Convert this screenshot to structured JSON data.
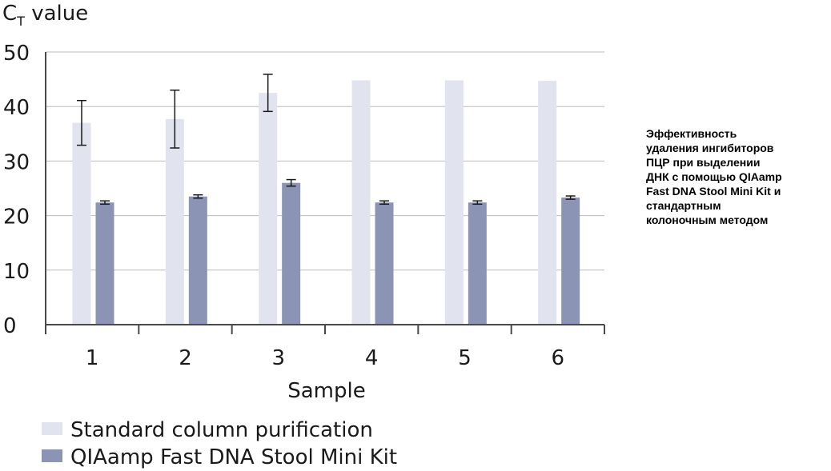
{
  "caption": "Эффективность\nудаления ингибиторов\nПЦР при выделении\nДНК с помощью QIAamp\nFast DNA Stool Mini Kit и\nстандартным\nколоночным методом",
  "chart_data": {
    "type": "bar",
    "title": "",
    "ylabel_main": "C",
    "ylabel_sub": "T",
    "ylabel_rest": " value",
    "xlabel": "Sample",
    "categories": [
      "1",
      "2",
      "3",
      "4",
      "5",
      "6"
    ],
    "ylim": [
      0,
      50
    ],
    "yticks": [
      0,
      10,
      20,
      30,
      40,
      50
    ],
    "grid": true,
    "legend_position": "bottom-left",
    "series": [
      {
        "name": "Standard column purification",
        "color": "#e1e3ee",
        "values": [
          37.0,
          37.7,
          42.5,
          44.8,
          44.8,
          44.7
        ],
        "errors": [
          4.1,
          5.3,
          3.4,
          null,
          null,
          null
        ]
      },
      {
        "name": "QIAamp Fast DNA Stool Mini Kit",
        "color": "#8b94b4",
        "values": [
          22.4,
          23.5,
          26.0,
          22.4,
          22.4,
          23.3
        ],
        "errors": [
          0.3,
          0.3,
          0.6,
          0.3,
          0.3,
          0.3
        ]
      }
    ]
  }
}
